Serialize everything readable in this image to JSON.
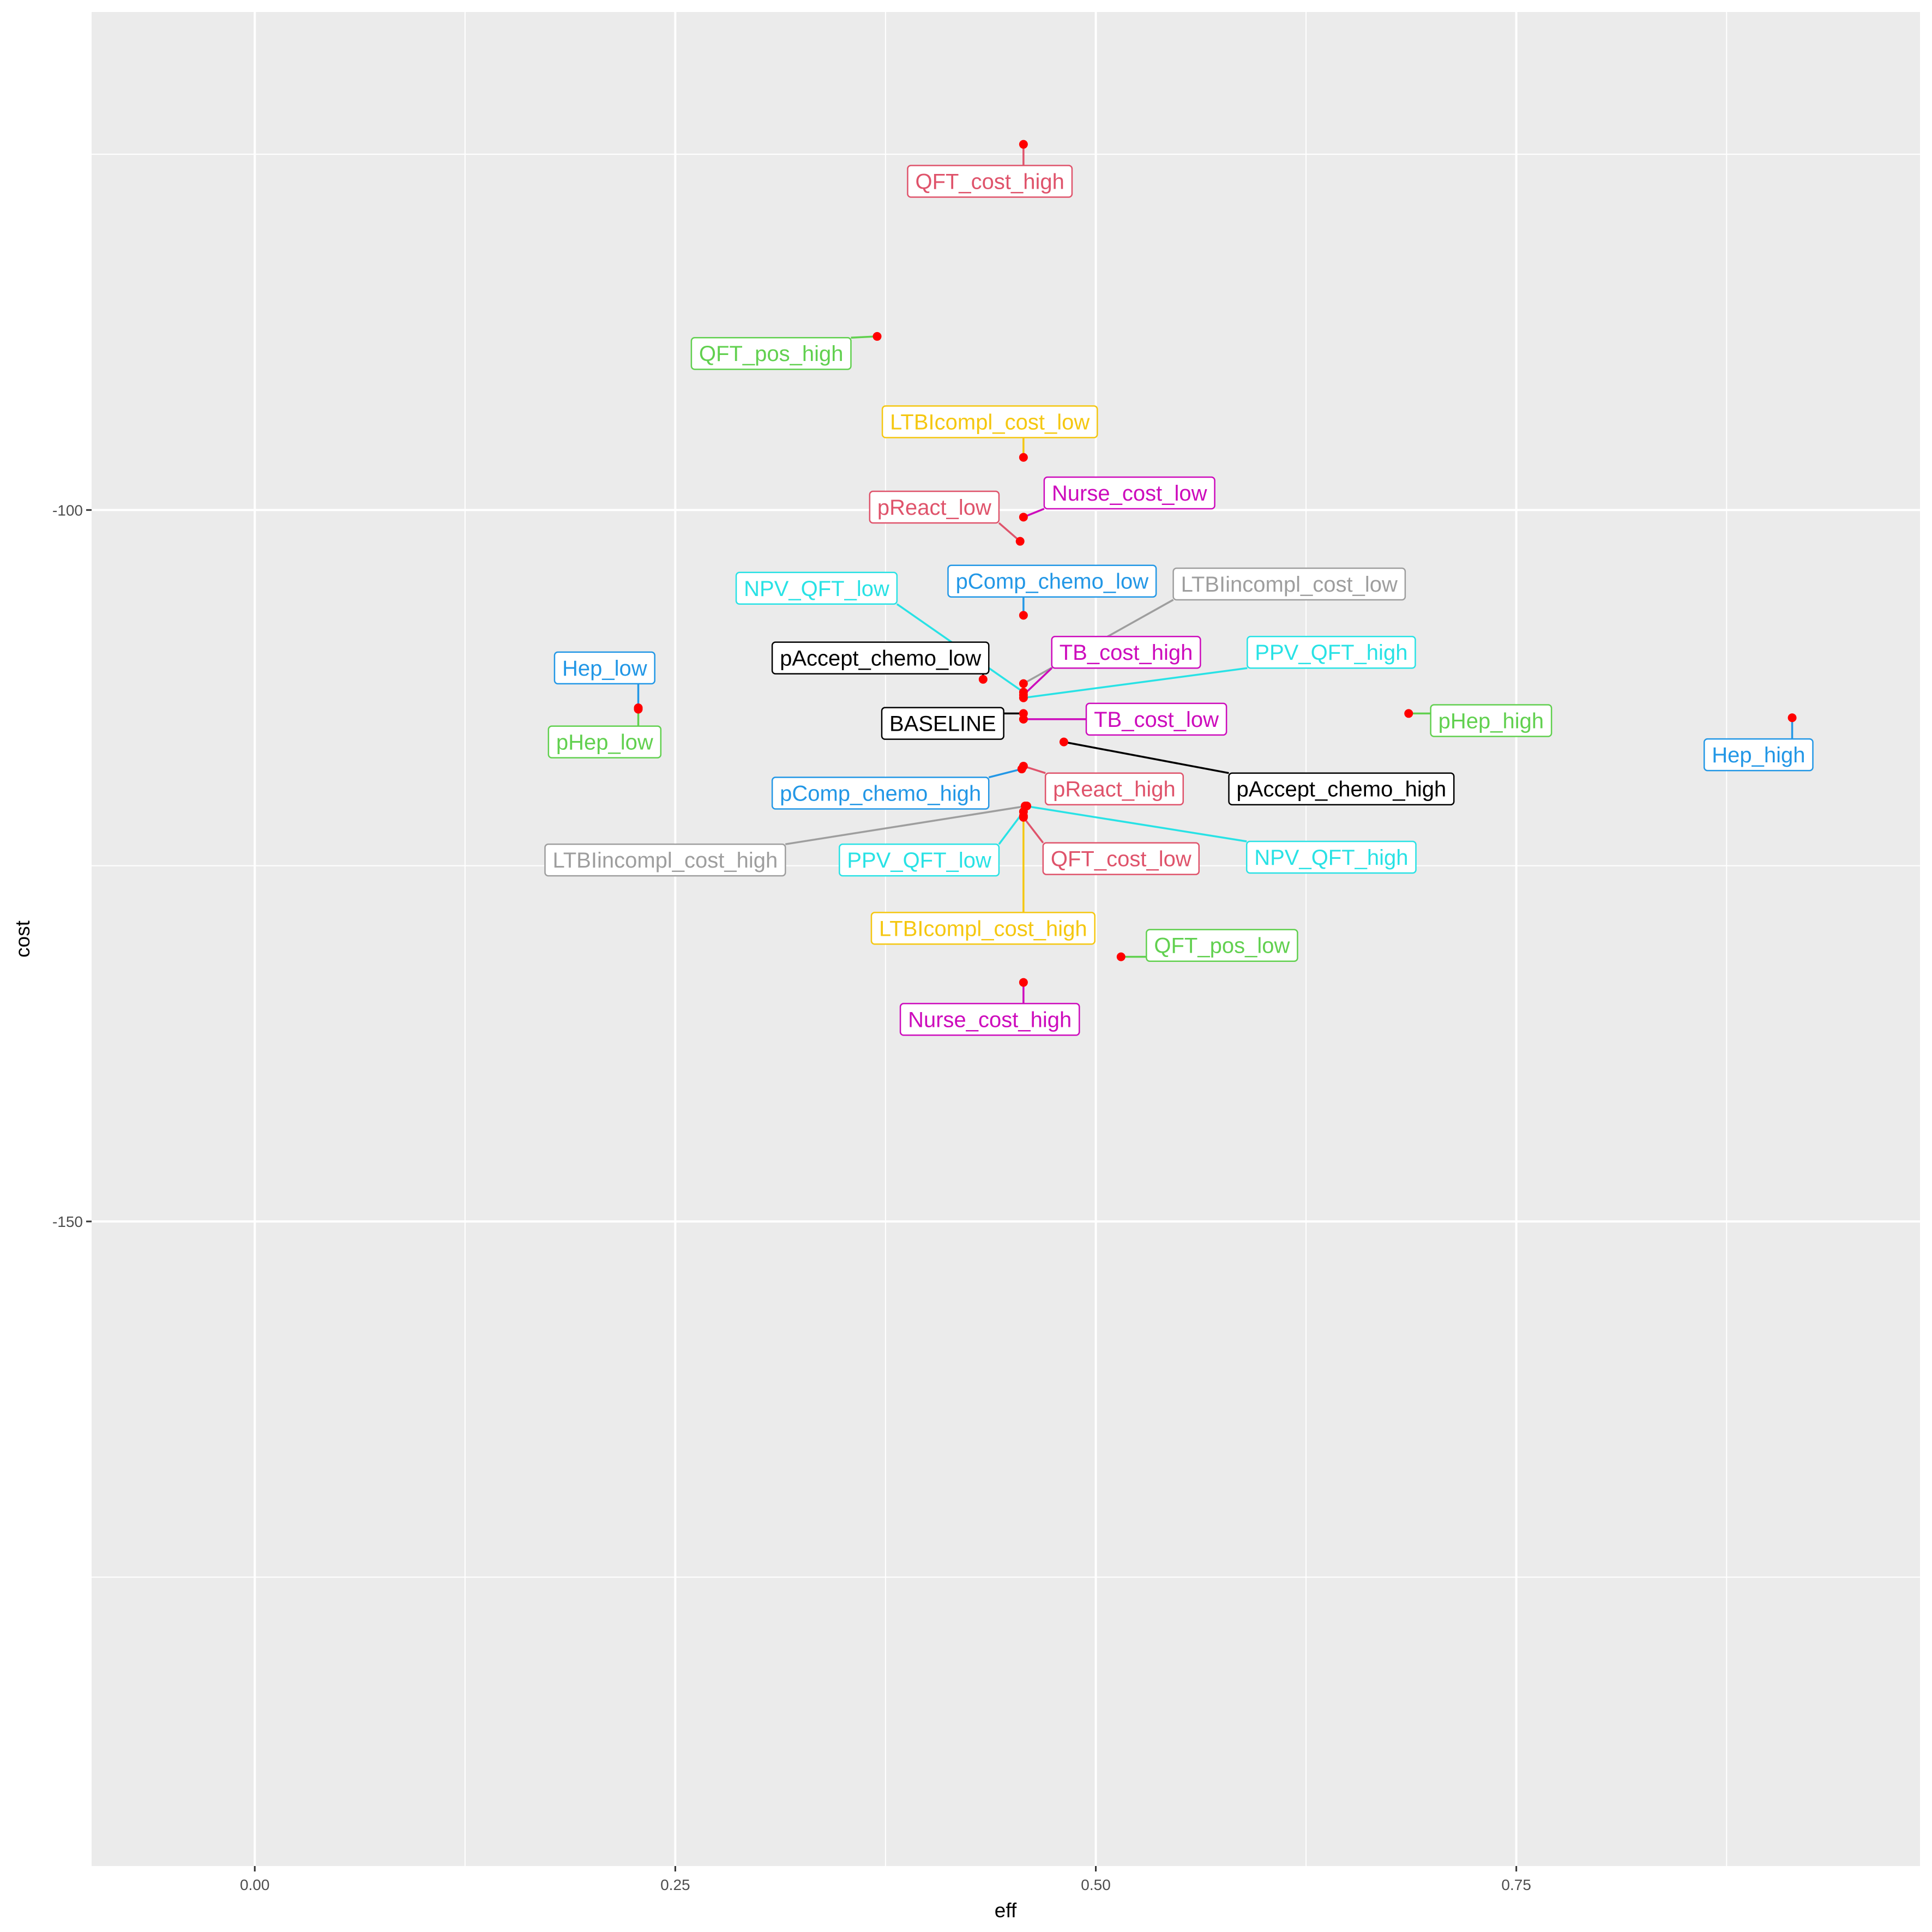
{
  "chart_data": {
    "type": "scatter",
    "title": "",
    "xlabel": "eff",
    "ylabel": "cost",
    "xlim": [
      -0.097,
      0.99
    ],
    "ylim": [
      -195.3,
      -65.0
    ],
    "x_ticks": [
      {
        "value": 0.0,
        "label": "0.00"
      },
      {
        "value": 0.25,
        "label": "0.25"
      },
      {
        "value": 0.5,
        "label": "0.50"
      },
      {
        "value": 0.75,
        "label": "0.75"
      }
    ],
    "y_ticks": [
      {
        "value": -100,
        "label": "-100"
      },
      {
        "value": -150,
        "label": "-150"
      }
    ],
    "grid": true,
    "background": "#EBEBEB",
    "point_color": "#FF0000",
    "points": [
      {
        "name": "BASELINE",
        "x": 0.457,
        "y": -114.3,
        "color": "#000000",
        "label_x": 0.409,
        "label_y": -115.0
      },
      {
        "name": "QFT_cost_high",
        "x": 0.457,
        "y": -74.3,
        "color": "#DF536B",
        "label_x": 0.437,
        "label_y": -76.9
      },
      {
        "name": "QFT_pos_high",
        "x": 0.37,
        "y": -87.8,
        "color": "#61D04F",
        "label_x": 0.307,
        "label_y": -89.0
      },
      {
        "name": "LTBIcompl_cost_low",
        "x": 0.457,
        "y": -96.3,
        "color": "#F5C710",
        "label_x": 0.437,
        "label_y": -93.8
      },
      {
        "name": "Nurse_cost_low",
        "x": 0.457,
        "y": -100.5,
        "color": "#CD0BBC",
        "label_x": 0.52,
        "label_y": -98.8
      },
      {
        "name": "pReact_low",
        "x": 0.455,
        "y": -102.2,
        "color": "#DF536B",
        "label_x": 0.404,
        "label_y": -99.8
      },
      {
        "name": "pComp_chemo_low",
        "x": 0.457,
        "y": -107.4,
        "color": "#2297E6",
        "label_x": 0.474,
        "label_y": -105.0
      },
      {
        "name": "LTBIincompl_cost_low",
        "x": 0.457,
        "y": -112.2,
        "color": "#9E9E9E",
        "label_x": 0.615,
        "label_y": -105.2
      },
      {
        "name": "NPV_QFT_low",
        "x": 0.457,
        "y": -112.8,
        "color": "#28E2E5",
        "label_x": 0.334,
        "label_y": -105.5
      },
      {
        "name": "TB_cost_high",
        "x": 0.457,
        "y": -113.0,
        "color": "#CD0BBC",
        "label_x": 0.518,
        "label_y": -110.0
      },
      {
        "name": "PPV_QFT_high",
        "x": 0.457,
        "y": -113.2,
        "color": "#28E2E5",
        "label_x": 0.64,
        "label_y": -110.0
      },
      {
        "name": "pAccept_chemo_low",
        "x": 0.433,
        "y": -111.9,
        "color": "#000000",
        "label_x": 0.372,
        "label_y": -110.4
      },
      {
        "name": "Hep_low",
        "x": 0.228,
        "y": -113.9,
        "color": "#2297E6",
        "label_x": 0.208,
        "label_y": -111.1
      },
      {
        "name": "pHep_low",
        "x": 0.228,
        "y": -114.0,
        "color": "#61D04F",
        "label_x": 0.208,
        "label_y": -116.3
      },
      {
        "name": "TB_cost_low",
        "x": 0.457,
        "y": -114.7,
        "color": "#CD0BBC",
        "label_x": 0.536,
        "label_y": -114.7
      },
      {
        "name": "pHep_high",
        "x": 0.686,
        "y": -114.3,
        "color": "#61D04F",
        "label_x": 0.735,
        "label_y": -114.8
      },
      {
        "name": "Hep_high",
        "x": 0.914,
        "y": -114.6,
        "color": "#2297E6",
        "label_x": 0.894,
        "label_y": -117.2
      },
      {
        "name": "pAccept_chemo_high",
        "x": 0.481,
        "y": -116.3,
        "color": "#000000",
        "label_x": 0.646,
        "label_y": -119.6
      },
      {
        "name": "pReact_high",
        "x": 0.457,
        "y": -118.0,
        "color": "#DF536B",
        "label_x": 0.511,
        "label_y": -119.6
      },
      {
        "name": "pComp_chemo_high",
        "x": 0.456,
        "y": -118.2,
        "color": "#2297E6",
        "label_x": 0.372,
        "label_y": -119.9
      },
      {
        "name": "LTBIincompl_cost_high",
        "x": 0.459,
        "y": -120.8,
        "color": "#9E9E9E",
        "label_x": 0.244,
        "label_y": -124.6
      },
      {
        "name": "PPV_QFT_low",
        "x": 0.457,
        "y": -121.2,
        "color": "#28E2E5",
        "label_x": 0.395,
        "label_y": -124.6
      },
      {
        "name": "NPV_QFT_high",
        "x": 0.458,
        "y": -120.8,
        "color": "#28E2E5",
        "label_x": 0.64,
        "label_y": -124.4
      },
      {
        "name": "QFT_cost_low",
        "x": 0.457,
        "y": -121.6,
        "color": "#DF536B",
        "label_x": 0.515,
        "label_y": -124.5
      },
      {
        "name": "LTBIcompl_cost_high",
        "x": 0.457,
        "y": -121.5,
        "color": "#F5C710",
        "label_x": 0.433,
        "label_y": -129.4
      },
      {
        "name": "QFT_pos_low",
        "x": 0.515,
        "y": -131.4,
        "color": "#61D04F",
        "label_x": 0.575,
        "label_y": -130.6
      },
      {
        "name": "Nurse_cost_high",
        "x": 0.457,
        "y": -133.2,
        "color": "#CD0BBC",
        "label_x": 0.437,
        "label_y": -135.8
      }
    ]
  }
}
